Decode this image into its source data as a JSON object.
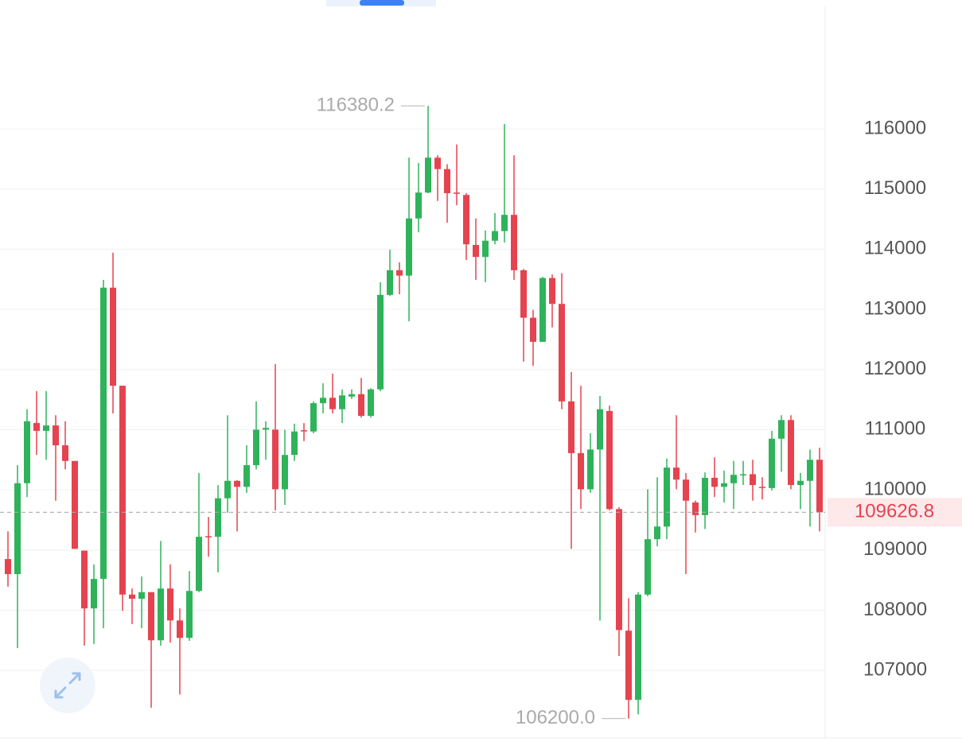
{
  "chart_data": {
    "type": "candlestick",
    "categories": [
      null,
      null,
      null,
      null,
      null,
      null,
      null,
      null,
      null,
      null,
      null,
      null,
      null,
      null,
      null,
      null,
      null,
      null,
      null,
      null,
      null,
      null,
      null,
      null,
      null,
      null,
      null,
      null,
      null,
      null,
      null,
      null,
      null,
      null,
      null,
      null,
      null,
      null,
      null,
      null,
      null,
      null,
      null,
      null,
      null,
      null,
      null,
      null,
      null,
      null,
      null,
      null,
      null,
      null,
      null,
      null,
      null,
      null,
      null,
      null,
      null,
      null,
      null,
      null,
      null,
      null,
      null,
      null,
      null,
      null,
      null,
      null,
      null,
      null,
      null,
      null,
      null,
      null,
      null,
      null,
      null,
      null,
      null,
      null,
      null,
      null
    ],
    "open": [
      108850,
      108600,
      110110,
      111110,
      110980,
      111070,
      110740,
      110480,
      108990,
      108030,
      108520,
      113360,
      111730,
      108260,
      108190,
      108300,
      107500,
      108360,
      107830,
      107540,
      108320,
      109230,
      109220,
      109860,
      110150,
      110050,
      110410,
      111000,
      111000,
      110010,
      110580,
      110990,
      110970,
      111440,
      111530,
      111340,
      111550,
      111590,
      111230,
      111670,
      113240,
      113650,
      113560,
      114510,
      114940,
      115520,
      115330,
      114940,
      114900,
      114070,
      113870,
      114140,
      114300,
      114570,
      113650,
      112860,
      112460,
      113520,
      113090,
      111470,
      110610,
      110010,
      110670,
      111310,
      109680,
      107660,
      106510,
      108260,
      109180,
      109390,
      110370,
      110170,
      109790,
      109580,
      110200,
      110050,
      110110,
      110240,
      110260,
      110050,
      110030,
      110850,
      111160,
      110080,
      110150,
      110500
    ],
    "high": [
      109310,
      110410,
      111340,
      111640,
      111640,
      111240,
      111140,
      110480,
      108990,
      108760,
      113490,
      113940,
      111730,
      108360,
      108560,
      108300,
      109150,
      108760,
      108030,
      108650,
      110280,
      109550,
      110080,
      111240,
      110160,
      110740,
      111470,
      111140,
      112090,
      111000,
      111100,
      111110,
      111470,
      111770,
      111930,
      111670,
      111670,
      111860,
      111690,
      113450,
      113990,
      113780,
      115520,
      115430,
      116380.2,
      115560,
      115410,
      115740,
      114930,
      114510,
      114310,
      114600,
      116080,
      115560,
      113670,
      112990,
      113540,
      113580,
      113600,
      111960,
      111730,
      110940,
      111560,
      111400,
      109710,
      108200,
      108300,
      110010,
      110210,
      110520,
      111240,
      110280,
      109820,
      110290,
      110540,
      110320,
      110480,
      110480,
      110500,
      110210,
      110980,
      111240,
      111240,
      110280,
      110670,
      110700
    ],
    "low": [
      108390,
      107370,
      109880,
      110580,
      110500,
      109820,
      110340,
      109020,
      107410,
      107440,
      107700,
      111270,
      107990,
      107770,
      107700,
      106380,
      107410,
      107460,
      106600,
      107490,
      108300,
      108890,
      108630,
      109620,
      109310,
      109950,
      110340,
      110500,
      109660,
      109750,
      110480,
      110810,
      110940,
      111270,
      111270,
      111110,
      111510,
      111200,
      111200,
      111640,
      113220,
      113250,
      112800,
      114280,
      114930,
      114800,
      114440,
      114730,
      113820,
      113490,
      113450,
      114080,
      114110,
      113490,
      112130,
      112060,
      112460,
      112700,
      111340,
      109020,
      109680,
      109950,
      107830,
      109660,
      107240,
      106200,
      106270,
      108230,
      109060,
      109180,
      110010,
      108600,
      109290,
      109350,
      109880,
      109790,
      109680,
      110080,
      109820,
      109840,
      109990,
      110300,
      110010,
      109680,
      109390,
      109310
    ],
    "close": [
      108600,
      110110,
      111140,
      110980,
      111070,
      110740,
      110480,
      109020,
      108030,
      108520,
      113360,
      111730,
      108260,
      108190,
      108300,
      107500,
      108360,
      107830,
      107540,
      108320,
      109220,
      109210,
      109860,
      110150,
      110050,
      110410,
      111000,
      111030,
      110010,
      110580,
      110970,
      110970,
      111440,
      111530,
      111340,
      111570,
      111590,
      111230,
      111670,
      113240,
      113650,
      113560,
      114510,
      114940,
      115520,
      115330,
      114930,
      114920,
      114080,
      113870,
      114140,
      114300,
      114570,
      113650,
      112860,
      112460,
      113520,
      113090,
      111470,
      110610,
      110010,
      110670,
      111340,
      109680,
      107670,
      106510,
      108260,
      109180,
      109390,
      110370,
      110170,
      109820,
      109580,
      110200,
      110050,
      110110,
      110250,
      110260,
      110080,
      110030,
      110850,
      111160,
      110080,
      110150,
      110500,
      109626.8
    ],
    "up_color": "#2fb35a",
    "down_color": "#e5434f",
    "ylim": [
      105760,
      118140
    ],
    "yticks": [
      107000,
      108000,
      109000,
      110000,
      111000,
      112000,
      113000,
      114000,
      115000,
      116000
    ],
    "grid": true,
    "high_marker": 116380.2,
    "low_marker": {
      "value": 106200,
      "label": "106200.0"
    },
    "last_price": 109626.8
  }
}
